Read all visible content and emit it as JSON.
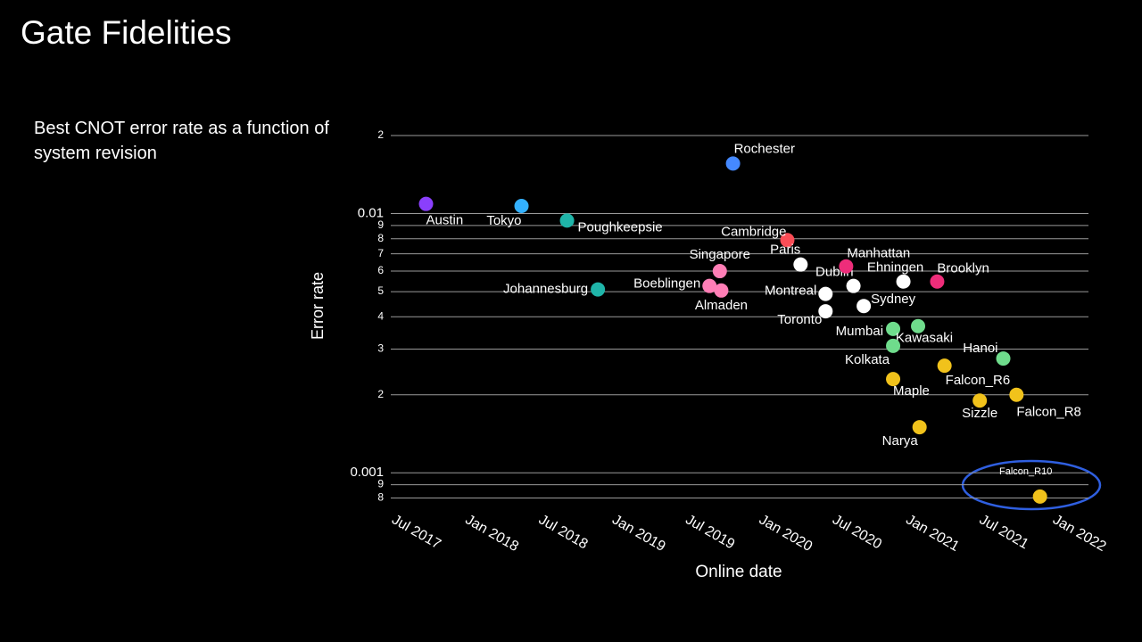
{
  "title": "Gate Fidelities",
  "subtitle": "Best CNOT error rate as a function of system revision",
  "chart_data": {
    "type": "scatter",
    "x_label": "Online date",
    "y_label": "Error rate",
    "yscale": "log",
    "grid": true,
    "xlim": [
      2017.45,
      2022.2
    ],
    "ylim": [
      0.00073,
      0.022
    ],
    "xticks": [
      {
        "value": 2017.5,
        "label": "Jul 2017"
      },
      {
        "value": 2018.0,
        "label": "Jan 2018"
      },
      {
        "value": 2018.5,
        "label": "Jul 2018"
      },
      {
        "value": 2019.0,
        "label": "Jan 2019"
      },
      {
        "value": 2019.5,
        "label": "Jul 2019"
      },
      {
        "value": 2020.0,
        "label": "Jan 2020"
      },
      {
        "value": 2020.5,
        "label": "Jul 2020"
      },
      {
        "value": 2021.0,
        "label": "Jan 2021"
      },
      {
        "value": 2021.5,
        "label": "Jul 2021"
      },
      {
        "value": 2022.0,
        "label": "Jan 2022"
      }
    ],
    "yticks": [
      {
        "value": 0.02,
        "label": "2"
      },
      0.01,
      {
        "value": 0.009,
        "label": "9"
      },
      {
        "value": 0.008,
        "label": "8"
      },
      {
        "value": 0.007,
        "label": "7"
      },
      {
        "value": 0.006,
        "label": "6"
      },
      {
        "value": 0.005,
        "label": "5"
      },
      {
        "value": 0.004,
        "label": "4"
      },
      {
        "value": 0.003,
        "label": "3"
      },
      {
        "value": 0.002,
        "label": "2"
      },
      0.001,
      {
        "value": 0.0009,
        "label": "9"
      },
      {
        "value": 0.0008,
        "label": "8"
      }
    ],
    "labels": [
      "Austin",
      "Tokyo",
      "Poughkeepsie",
      "Johannesburg",
      "Rochester",
      "Cambridge",
      "Paris",
      "Singapore",
      "Boeblingen",
      "Almaden",
      "Montreal",
      "Toronto",
      "Dublin",
      "Sydney",
      "Manhattan",
      "Ehningen",
      "Brooklyn",
      "Mumbai",
      "Kawasaki",
      "Kolkata",
      "Hanoi",
      "Falcon_R6",
      "Maple",
      "Sizzle",
      "Falcon_R8",
      "Narya",
      "Falcon_R10"
    ],
    "x": [
      2017.69,
      2018.34,
      2018.65,
      2018.86,
      2019.78,
      2020.15,
      2020.24,
      2019.69,
      2019.62,
      2019.7,
      2020.41,
      2020.41,
      2020.6,
      2020.67,
      2020.55,
      2020.94,
      2021.17,
      2020.87,
      2021.04,
      2020.87,
      2021.62,
      2021.22,
      2020.87,
      2021.46,
      2021.71,
      2021.05,
      2021.87
    ],
    "values": [
      0.0109,
      0.0107,
      0.0094,
      0.0051,
      0.0156,
      0.0079,
      0.00636,
      0.006,
      0.00526,
      0.00505,
      0.0049,
      0.0042,
      0.00526,
      0.0044,
      0.00626,
      0.00547,
      0.00547,
      0.00359,
      0.00368,
      0.00309,
      0.00276,
      0.00259,
      0.0023,
      0.0019,
      0.002,
      0.0015,
      0.00081
    ],
    "colors": [
      "#8a3ffc",
      "#33b1ff",
      "#1fb5a9",
      "#1fb5a9",
      "#4589ff",
      "#fa4d56",
      "#ffffff",
      "#ff7eb6",
      "#ff7eb6",
      "#ff7eb6",
      "#ffffff",
      "#ffffff",
      "#ffffff",
      "#ffffff",
      "#ee2d7a",
      "#ffffff",
      "#ee2d7a",
      "#6fdc8c",
      "#6fdc8c",
      "#6fdc8c",
      "#6fdc8c",
      "#f1c21b",
      "#f1c21b",
      "#f1c21b",
      "#f1c21b",
      "#f1c21b",
      "#f1c21b"
    ]
  }
}
